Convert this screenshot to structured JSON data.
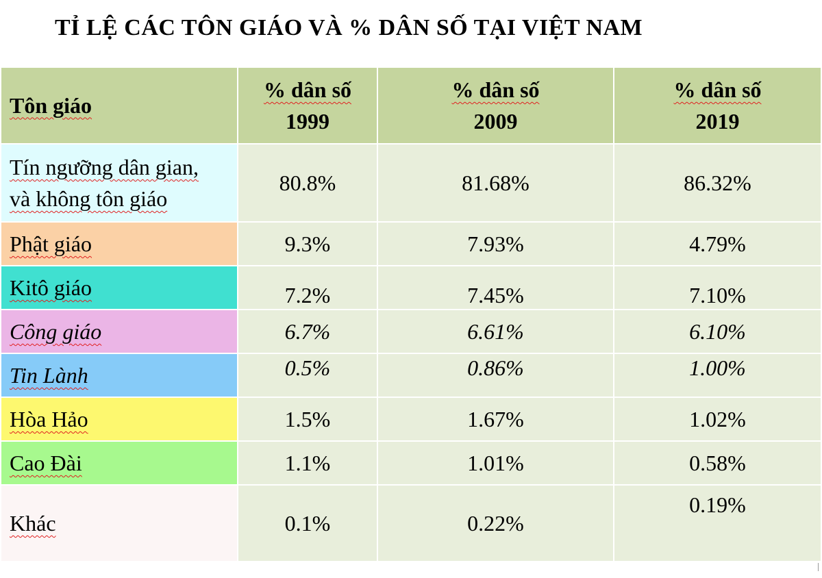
{
  "title": "TỈ LỆ CÁC TÔN GIÁO VÀ % DÂN SỐ TẠI VIỆT NAM",
  "header": {
    "religion": "Tôn giáo",
    "pct_label": "% dân số",
    "years": [
      "1999",
      "2009",
      "2019"
    ]
  },
  "rows": [
    {
      "name_line1": "Tín ngưỡng dân gian,",
      "name_line2": "và không tôn giáo",
      "values": [
        "80.8%",
        "81.68%",
        "86.32%"
      ],
      "color": "#dffcfe"
    },
    {
      "name": "Phật giáo",
      "values": [
        "9.3%",
        "7.93%",
        "4.79%"
      ],
      "color": "#fbd1a6"
    },
    {
      "name": "Kitô giáo",
      "values": [
        "7.2%",
        "7.45%",
        "7.10%"
      ],
      "color": "#40e0d0"
    },
    {
      "name": "Công giáo",
      "values": [
        "6.7%",
        "6.61%",
        "6.10%"
      ],
      "color": "#ebb5e6"
    },
    {
      "name": "Tin Lành",
      "values": [
        "0.5%",
        "0.86%",
        "1.00%"
      ],
      "color": "#86cbf8"
    },
    {
      "name": "Hòa Hảo",
      "values": [
        "1.5%",
        "1.67%",
        "1.02%"
      ],
      "color": "#fdf86f"
    },
    {
      "name": "Cao Đài",
      "values": [
        "1.1%",
        "1.01%",
        "0.58%"
      ],
      "color": "#a7f98e"
    },
    {
      "name": "Khác",
      "values": [
        "0.1%",
        "0.22%",
        "0.19%"
      ],
      "color": "#fcf5f5"
    }
  ]
}
